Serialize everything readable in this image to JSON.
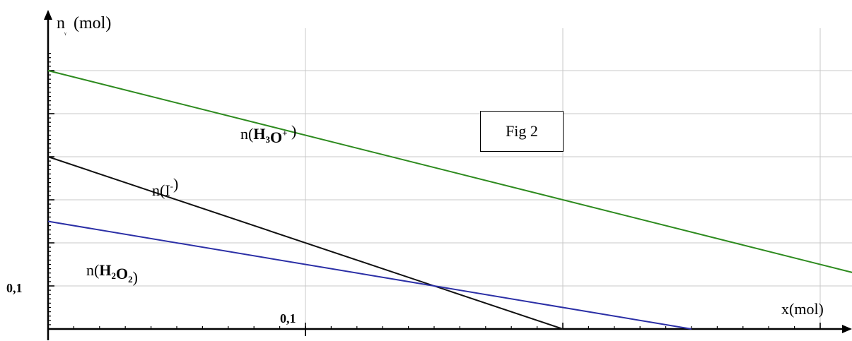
{
  "chart_data": {
    "type": "line",
    "ylabel": {
      "main": "n",
      "sub": "ᵧ",
      "unit": "(mol)"
    },
    "xlabel": "x(mol)",
    "x_tick_label": "0,1",
    "y_tick_label": "0,1",
    "xlim": [
      0,
      0.3
    ],
    "ylim": [
      0,
      0.6
    ],
    "grid": true,
    "series": [
      {
        "id": "h3o",
        "x": [
          0,
          0.4
        ],
        "y": [
          0.6,
          0
        ],
        "color": "#2e8b1f",
        "label_parts": [
          {
            "t": "n(",
            "b": false
          },
          {
            "t": "H",
            "b": true
          },
          {
            "t": "3",
            "b": true,
            "sub": true
          },
          {
            "t": "O",
            "b": true
          },
          {
            "t": "+",
            "b": true,
            "sup": true
          },
          {
            "t": " )",
            "b": false
          }
        ]
      },
      {
        "id": "iodide",
        "x": [
          0,
          0.2
        ],
        "y": [
          0.4,
          0
        ],
        "color": "#111111",
        "label_parts": [
          {
            "t": "n(I",
            "b": false
          },
          {
            "t": "-",
            "b": false,
            "sup": true
          },
          {
            "t": ")",
            "b": false
          }
        ]
      },
      {
        "id": "h2o2",
        "x": [
          0,
          0.25
        ],
        "y": [
          0.25,
          0
        ],
        "color": "#2b2fa6",
        "label_parts": [
          {
            "t": "n(",
            "b": false
          },
          {
            "t": "H",
            "b": true
          },
          {
            "t": "2",
            "b": true,
            "sub": true
          },
          {
            "t": "O",
            "b": true
          },
          {
            "t": "2",
            "b": true,
            "sub": true
          },
          {
            "t": ")",
            "b": false
          }
        ]
      }
    ]
  },
  "annotation": {
    "text": "Fig 2"
  }
}
